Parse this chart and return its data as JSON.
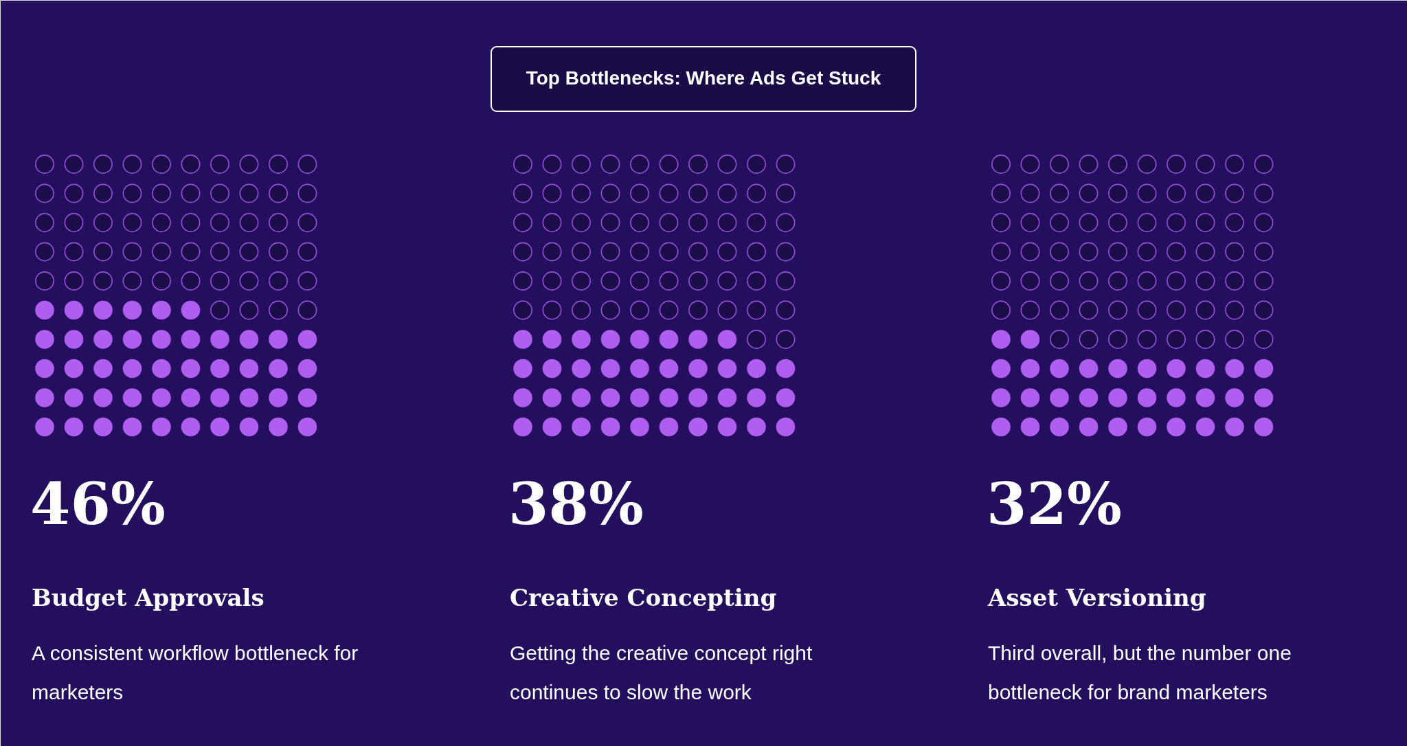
{
  "chart_data": {
    "type": "other",
    "title": "Top Bottlenecks: Where Ads Get Stuck",
    "categories": [
      "Budget Approvals",
      "Creative Concepting",
      "Asset Versioning"
    ],
    "values": [
      46,
      38,
      32
    ],
    "value_labels": [
      "46%",
      "38%",
      "32%"
    ],
    "colors": [
      "#b05ef0",
      "#b05ef0",
      "#b05ef0"
    ],
    "annotations": [
      "A consistent workflow bottleneck for marketers",
      "Getting the creative concept right continues to slow the work",
      "Third overall, but the number one bottleneck for brand marketers"
    ]
  }
}
